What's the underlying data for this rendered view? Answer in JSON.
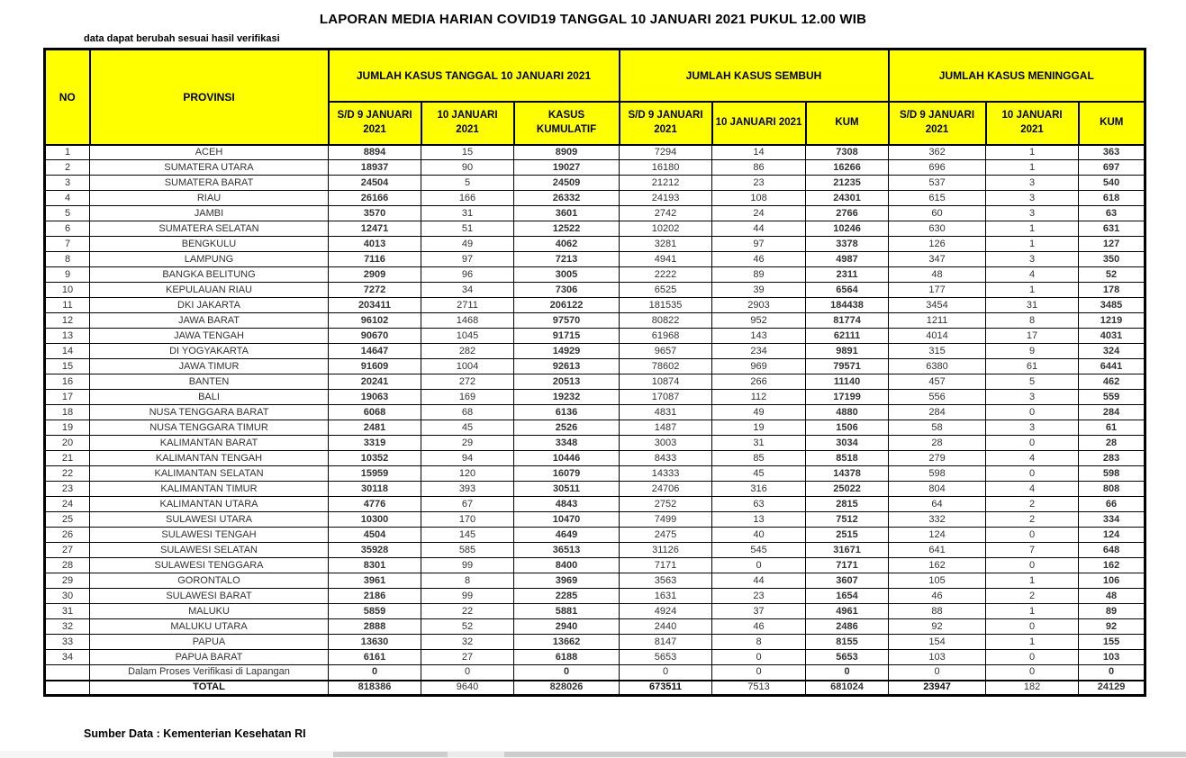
{
  "page": {
    "title": "LAPORAN MEDIA HARIAN COVID19 TANGGAL 10 JANUARI 2021 PUKUL 12.00 WIB",
    "note": "data dapat berubah sesuai hasil verifikasi",
    "source": "Sumber Data : Kementerian Kesehatan RI"
  },
  "colors": {
    "header_bg": "#FFFF00",
    "border": "#000000",
    "bold_text": "#111111",
    "muted_text": "#595959",
    "dark_text": "#3d3d3d"
  },
  "table": {
    "header": {
      "no": "NO",
      "provinsi": "PROVINSI",
      "group_kasus": "JUMLAH KASUS TANGGAL 10 JANUARI 2021",
      "group_sembuh": "JUMLAH KASUS SEMBUH",
      "group_meninggal": "JUMLAH KASUS MENINGGAL",
      "sub": [
        "S/D 9 JANUARI 2021",
        "10 JANUARI 2021",
        "KASUS KUMULATIF",
        "S/D 9 JANUARI 2021",
        "10 JANUARI 2021",
        "KUM",
        "S/D 9 JANUARI 2021",
        "10 JANUARI 2021",
        "KUM"
      ]
    },
    "rows": [
      {
        "no": "1",
        "provinsi": "ACEH",
        "values": [
          "8894",
          "15",
          "8909",
          "7294",
          "14",
          "7308",
          "362",
          "1",
          "363"
        ]
      },
      {
        "no": "2",
        "provinsi": "SUMATERA UTARA",
        "values": [
          "18937",
          "90",
          "19027",
          "16180",
          "86",
          "16266",
          "696",
          "1",
          "697"
        ]
      },
      {
        "no": "3",
        "provinsi": "SUMATERA BARAT",
        "values": [
          "24504",
          "5",
          "24509",
          "21212",
          "23",
          "21235",
          "537",
          "3",
          "540"
        ]
      },
      {
        "no": "4",
        "provinsi": "RIAU",
        "values": [
          "26166",
          "166",
          "26332",
          "24193",
          "108",
          "24301",
          "615",
          "3",
          "618"
        ]
      },
      {
        "no": "5",
        "provinsi": "JAMBI",
        "values": [
          "3570",
          "31",
          "3601",
          "2742",
          "24",
          "2766",
          "60",
          "3",
          "63"
        ]
      },
      {
        "no": "6",
        "provinsi": "SUMATERA SELATAN",
        "values": [
          "12471",
          "51",
          "12522",
          "10202",
          "44",
          "10246",
          "630",
          "1",
          "631"
        ]
      },
      {
        "no": "7",
        "provinsi": "BENGKULU",
        "values": [
          "4013",
          "49",
          "4062",
          "3281",
          "97",
          "3378",
          "126",
          "1",
          "127"
        ]
      },
      {
        "no": "8",
        "provinsi": "LAMPUNG",
        "values": [
          "7116",
          "97",
          "7213",
          "4941",
          "46",
          "4987",
          "347",
          "3",
          "350"
        ]
      },
      {
        "no": "9",
        "provinsi": "BANGKA BELITUNG",
        "values": [
          "2909",
          "96",
          "3005",
          "2222",
          "89",
          "2311",
          "48",
          "4",
          "52"
        ]
      },
      {
        "no": "10",
        "provinsi": "KEPULAUAN RIAU",
        "values": [
          "7272",
          "34",
          "7306",
          "6525",
          "39",
          "6564",
          "177",
          "1",
          "178"
        ]
      },
      {
        "no": "11",
        "provinsi": "DKI JAKARTA",
        "values": [
          "203411",
          "2711",
          "206122",
          "181535",
          "2903",
          "184438",
          "3454",
          "31",
          "3485"
        ]
      },
      {
        "no": "12",
        "provinsi": "JAWA BARAT",
        "values": [
          "96102",
          "1468",
          "97570",
          "80822",
          "952",
          "81774",
          "1211",
          "8",
          "1219"
        ]
      },
      {
        "no": "13",
        "provinsi": "JAWA TENGAH",
        "values": [
          "90670",
          "1045",
          "91715",
          "61968",
          "143",
          "62111",
          "4014",
          "17",
          "4031"
        ]
      },
      {
        "no": "14",
        "provinsi": "DI YOGYAKARTA",
        "values": [
          "14647",
          "282",
          "14929",
          "9657",
          "234",
          "9891",
          "315",
          "9",
          "324"
        ]
      },
      {
        "no": "15",
        "provinsi": "JAWA TIMUR",
        "values": [
          "91609",
          "1004",
          "92613",
          "78602",
          "969",
          "79571",
          "6380",
          "61",
          "6441"
        ]
      },
      {
        "no": "16",
        "provinsi": "BANTEN",
        "values": [
          "20241",
          "272",
          "20513",
          "10874",
          "266",
          "11140",
          "457",
          "5",
          "462"
        ]
      },
      {
        "no": "17",
        "provinsi": "BALI",
        "values": [
          "19063",
          "169",
          "19232",
          "17087",
          "112",
          "17199",
          "556",
          "3",
          "559"
        ]
      },
      {
        "no": "18",
        "provinsi": "NUSA TENGGARA BARAT",
        "values": [
          "6068",
          "68",
          "6136",
          "4831",
          "49",
          "4880",
          "284",
          "0",
          "284"
        ]
      },
      {
        "no": "19",
        "provinsi": "NUSA TENGGARA TIMUR",
        "values": [
          "2481",
          "45",
          "2526",
          "1487",
          "19",
          "1506",
          "58",
          "3",
          "61"
        ]
      },
      {
        "no": "20",
        "provinsi": "KALIMANTAN BARAT",
        "values": [
          "3319",
          "29",
          "3348",
          "3003",
          "31",
          "3034",
          "28",
          "0",
          "28"
        ]
      },
      {
        "no": "21",
        "provinsi": "KALIMANTAN TENGAH",
        "values": [
          "10352",
          "94",
          "10446",
          "8433",
          "85",
          "8518",
          "279",
          "4",
          "283"
        ]
      },
      {
        "no": "22",
        "provinsi": "KALIMANTAN SELATAN",
        "values": [
          "15959",
          "120",
          "16079",
          "14333",
          "45",
          "14378",
          "598",
          "0",
          "598"
        ]
      },
      {
        "no": "23",
        "provinsi": "KALIMANTAN TIMUR",
        "values": [
          "30118",
          "393",
          "30511",
          "24706",
          "316",
          "25022",
          "804",
          "4",
          "808"
        ]
      },
      {
        "no": "24",
        "provinsi": "KALIMANTAN UTARA",
        "values": [
          "4776",
          "67",
          "4843",
          "2752",
          "63",
          "2815",
          "64",
          "2",
          "66"
        ]
      },
      {
        "no": "25",
        "provinsi": "SULAWESI UTARA",
        "values": [
          "10300",
          "170",
          "10470",
          "7499",
          "13",
          "7512",
          "332",
          "2",
          "334"
        ]
      },
      {
        "no": "26",
        "provinsi": "SULAWESI TENGAH",
        "values": [
          "4504",
          "145",
          "4649",
          "2475",
          "40",
          "2515",
          "124",
          "0",
          "124"
        ]
      },
      {
        "no": "27",
        "provinsi": "SULAWESI SELATAN",
        "values": [
          "35928",
          "585",
          "36513",
          "31126",
          "545",
          "31671",
          "641",
          "7",
          "648"
        ]
      },
      {
        "no": "28",
        "provinsi": "SULAWESI TENGGARA",
        "values": [
          "8301",
          "99",
          "8400",
          "7171",
          "0",
          "7171",
          "162",
          "0",
          "162"
        ]
      },
      {
        "no": "29",
        "provinsi": "GORONTALO",
        "values": [
          "3961",
          "8",
          "3969",
          "3563",
          "44",
          "3607",
          "105",
          "1",
          "106"
        ]
      },
      {
        "no": "30",
        "provinsi": "SULAWESI BARAT",
        "values": [
          "2186",
          "99",
          "2285",
          "1631",
          "23",
          "1654",
          "46",
          "2",
          "48"
        ]
      },
      {
        "no": "31",
        "provinsi": "MALUKU",
        "values": [
          "5859",
          "22",
          "5881",
          "4924",
          "37",
          "4961",
          "88",
          "1",
          "89"
        ]
      },
      {
        "no": "32",
        "provinsi": "MALUKU UTARA",
        "values": [
          "2888",
          "52",
          "2940",
          "2440",
          "46",
          "2486",
          "92",
          "0",
          "92"
        ]
      },
      {
        "no": "33",
        "provinsi": "PAPUA",
        "values": [
          "13630",
          "32",
          "13662",
          "8147",
          "8",
          "8155",
          "154",
          "1",
          "155"
        ]
      },
      {
        "no": "34",
        "provinsi": "PAPUA BARAT",
        "values": [
          "6161",
          "27",
          "6188",
          "5653",
          "0",
          "5653",
          "103",
          "0",
          "103"
        ]
      }
    ],
    "verification_row": {
      "no": "",
      "provinsi": "Dalam Proses Verifikasi di Lapangan",
      "values": [
        "0",
        "0",
        "0",
        "0",
        "0",
        "0",
        "0",
        "0",
        "0"
      ]
    },
    "total_row": {
      "no": "",
      "provinsi": "TOTAL",
      "values": [
        "818386",
        "9640",
        "828026",
        "673511",
        "7513",
        "681024",
        "23947",
        "182",
        "24129"
      ]
    }
  }
}
